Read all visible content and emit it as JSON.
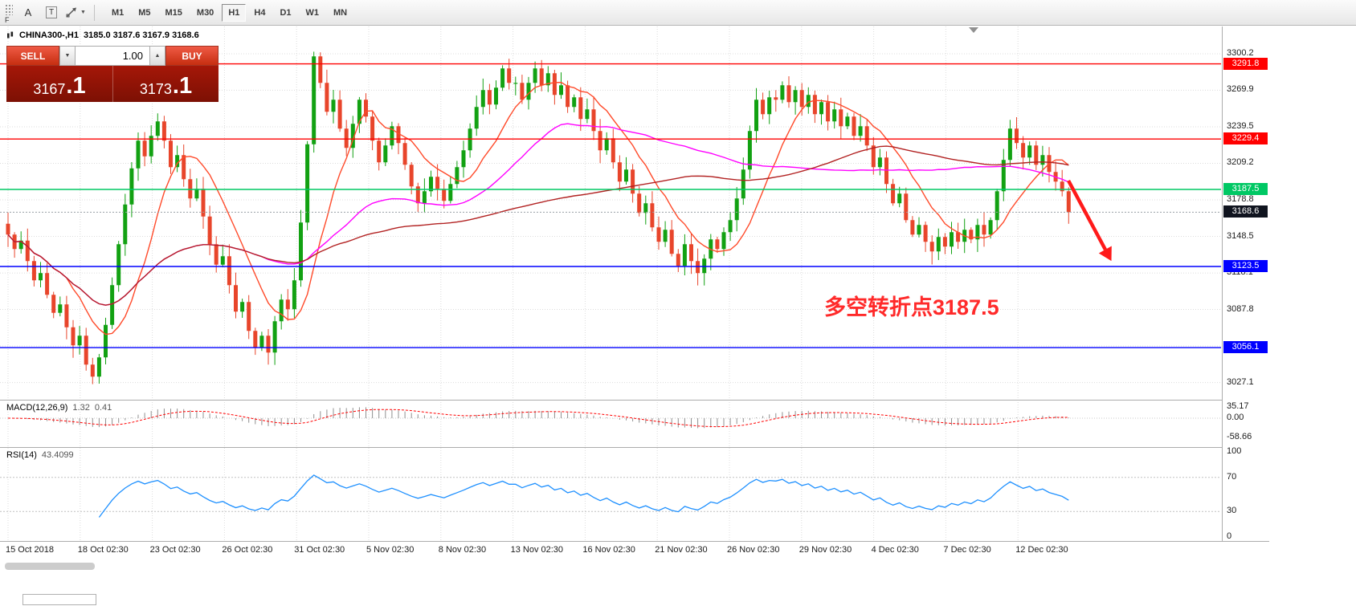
{
  "colors": {
    "up": "#12a112",
    "down": "#e8452b",
    "ma_fast": "#ff4a2a",
    "ma_mid": "#ff00ff",
    "ma_slow": "#b22222",
    "hline_red": "#ff0000",
    "hline_green": "#00c864",
    "hline_blue": "#0000ff",
    "current_badge": "#10141f",
    "rsi": "#1e90ff",
    "macd_hist": "#909090",
    "macd_signal": "#ff0000",
    "annotation": "#ff2a2a"
  },
  "icons": {
    "caret_down": "▼",
    "spinner_down": "▼",
    "spinner_up": "▲"
  },
  "toolbar": {
    "grip_label": "F",
    "tools": [
      {
        "name": "label-tool",
        "label": "A"
      },
      {
        "name": "text-tool",
        "label": "T"
      }
    ],
    "timeframes": [
      "M1",
      "M5",
      "M15",
      "M30",
      "H1",
      "H4",
      "D1",
      "W1",
      "MN"
    ],
    "active_timeframe": "H1"
  },
  "header": {
    "symbol": "CHINA300-,H1",
    "ohlc": "3185.0 3187.6 3167.9 3168.6"
  },
  "trade_panel": {
    "sell_label": "SELL",
    "buy_label": "BUY",
    "volume": "1.00",
    "sell_price": "3167",
    "sell_price_frac": ".1",
    "buy_price": "3173",
    "buy_price_frac": ".1"
  },
  "annotation_text": "多空转折点3187.5",
  "price_axis": {
    "badges": [
      {
        "value": "3291.8",
        "price": 3291.8,
        "color": "#ff0000"
      },
      {
        "value": "3229.4",
        "price": 3229.4,
        "color": "#ff0000"
      },
      {
        "value": "3187.5",
        "price": 3187.5,
        "color": "#00c864"
      },
      {
        "value": "3168.6",
        "price": 3168.6,
        "color": "#10141f"
      },
      {
        "value": "3123.5",
        "price": 3123.5,
        "color": "#0000ff"
      },
      {
        "value": "3056.1",
        "price": 3056.1,
        "color": "#0000ff"
      }
    ]
  },
  "hlines": [
    {
      "price": 3291.8,
      "color": "#ff0000"
    },
    {
      "price": 3229.4,
      "color": "#ff0000"
    },
    {
      "price": 3187.5,
      "color": "#00c864"
    },
    {
      "price": 3123.5,
      "color": "#0000ff"
    },
    {
      "price": 3056.1,
      "color": "#0000ff"
    }
  ],
  "current_price": 3168.6,
  "macd": {
    "name": "MACD(12,26,9)",
    "value_main": "1.32",
    "value_signal": "0.41",
    "axis": [
      "35.17",
      "0.00",
      "-58.66"
    ]
  },
  "rsi": {
    "name": "RSI(14)",
    "value": "43.4099",
    "axis": [
      "100",
      "70",
      "30",
      "0"
    ],
    "levels": [
      70,
      30
    ]
  },
  "chart_data": {
    "type": "candlestick",
    "symbol": "CHINA300-",
    "timeframe": "H1",
    "title": "CHINA300-,H1 3185.0 3187.6 3167.9 3168.6",
    "x_labels": [
      "15 Oct 2018",
      "18 Oct 02:30",
      "23 Oct 02:30",
      "26 Oct 02:30",
      "31 Oct 02:30",
      "5 Nov 02:30",
      "8 Nov 02:30",
      "13 Nov 02:30",
      "16 Nov 02:30",
      "21 Nov 02:30",
      "26 Nov 02:30",
      "29 Nov 02:30",
      "4 Dec 02:30",
      "7 Dec 02:30",
      "12 Dec 02:30"
    ],
    "y_ticks": [
      3300.2,
      3269.9,
      3239.5,
      3209.2,
      3178.8,
      3148.5,
      3118.1,
      3087.8,
      3057.4,
      3027.1
    ],
    "ylim": [
      3013,
      3323
    ],
    "hline_levels": [
      3291.8,
      3229.4,
      3187.5,
      3123.5,
      3056.1
    ],
    "last_price": 3168.6,
    "indicators": {
      "macd": "12,26,9",
      "rsi": "14"
    },
    "closes": [
      3150,
      3138,
      3145,
      3128,
      3112,
      3118,
      3100,
      3085,
      3092,
      3073,
      3058,
      3066,
      3042,
      3032,
      3048,
      3075,
      3108,
      3142,
      3175,
      3205,
      3228,
      3215,
      3232,
      3244,
      3228,
      3206,
      3216,
      3196,
      3180,
      3188,
      3165,
      3142,
      3125,
      3132,
      3108,
      3086,
      3094,
      3070,
      3056,
      3066,
      3052,
      3078,
      3096,
      3088,
      3112,
      3160,
      3225,
      3298,
      3276,
      3252,
      3262,
      3238,
      3222,
      3242,
      3262,
      3248,
      3228,
      3210,
      3224,
      3240,
      3226,
      3208,
      3190,
      3176,
      3186,
      3198,
      3188,
      3178,
      3192,
      3206,
      3220,
      3238,
      3256,
      3270,
      3258,
      3272,
      3288,
      3276,
      3276,
      3262,
      3276,
      3288,
      3274,
      3284,
      3266,
      3274,
      3256,
      3264,
      3246,
      3254,
      3236,
      3220,
      3230,
      3210,
      3194,
      3204,
      3184,
      3168,
      3176,
      3156,
      3144,
      3154,
      3134,
      3124,
      3142,
      3128,
      3118,
      3130,
      3146,
      3138,
      3152,
      3162,
      3180,
      3204,
      3236,
      3262,
      3250,
      3264,
      3262,
      3274,
      3260,
      3270,
      3256,
      3266,
      3250,
      3260,
      3244,
      3254,
      3240,
      3248,
      3232,
      3240,
      3224,
      3206,
      3214,
      3192,
      3176,
      3184,
      3162,
      3150,
      3158,
      3144,
      3136,
      3148,
      3140,
      3152,
      3144,
      3154,
      3146,
      3158,
      3150,
      3162,
      3186,
      3212,
      3238,
      3226,
      3214,
      3224,
      3208,
      3216,
      3202,
      3194,
      3186,
      3168.6
    ]
  }
}
